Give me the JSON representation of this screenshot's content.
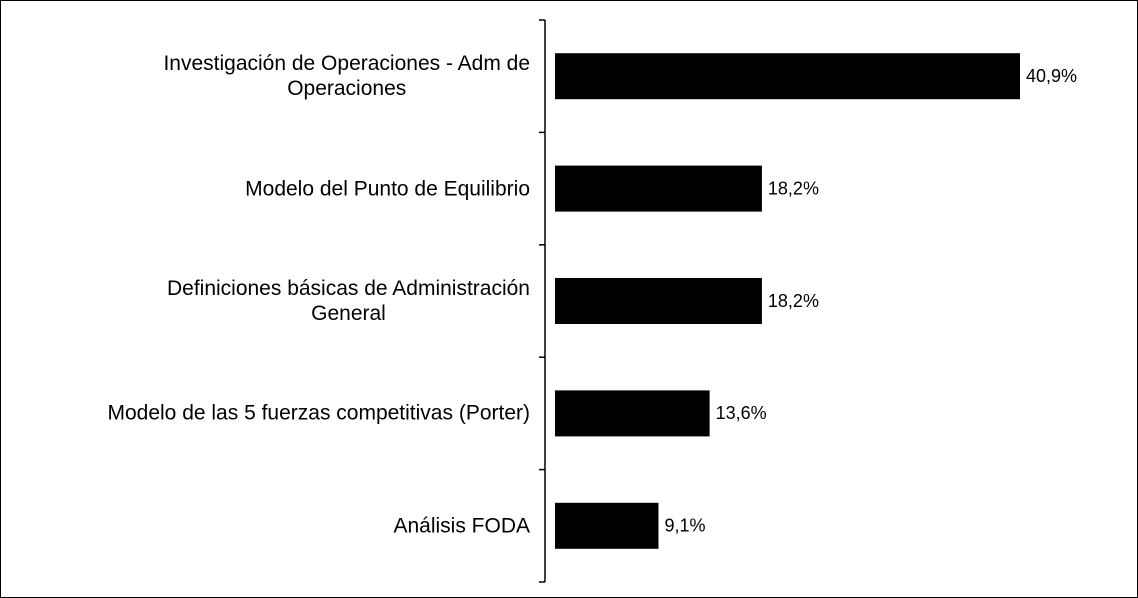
{
  "chart_data": {
    "type": "barh",
    "categories": [
      "Investigación de Operaciones - Adm de\nOperaciones",
      "Modelo del Punto de Equilibrio",
      "Definiciones básicas de Administración\nGeneral",
      "Modelo de las 5 fuerzas competitivas (Porter)",
      "Análisis FODA"
    ],
    "values": [
      40.9,
      18.2,
      18.2,
      13.6,
      9.1
    ],
    "value_labels": [
      "40,9%",
      "18,2%",
      "18,2%",
      "13,6%",
      "9,1%"
    ],
    "color": "#000000"
  }
}
